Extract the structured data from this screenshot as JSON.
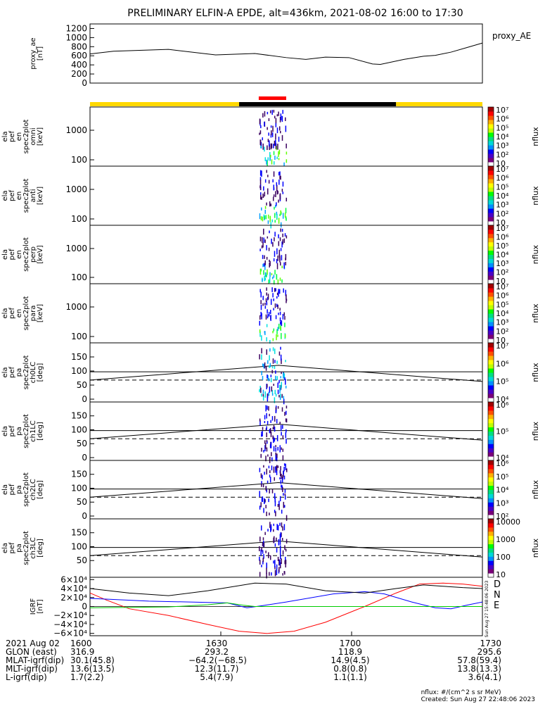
{
  "title": "PRELIMINARY ELFIN-A EPDE, alt=436km, 2021-08-02 16:00 to 17:30",
  "chart_data": {
    "type": "line",
    "time_range": [
      "16:00",
      "17:30"
    ],
    "panels": [
      {
        "id": "proxy_ae",
        "ylabel": [
          "proxy_ae",
          "[nT]"
        ],
        "legend": "proxy_AE",
        "yticks": [
          "0",
          "200",
          "400",
          "600",
          "800",
          "1000",
          "1200"
        ],
        "ylim": [
          0,
          1300
        ],
        "series": [
          {
            "x": [
              0,
              0.06,
              0.2,
              0.32,
              0.42,
              0.5,
              0.55,
              0.6,
              0.66,
              0.72,
              0.74,
              0.8,
              0.85,
              0.88,
              0.92,
              0.96,
              1.0
            ],
            "y": [
              640,
              700,
              740,
              620,
              650,
              560,
              520,
              570,
              560,
              420,
              410,
              520,
              590,
              610,
              680,
              780,
              880
            ]
          }
        ]
      },
      {
        "id": "omni",
        "ylabel": [
          "ela",
          "pef",
          "en",
          "spec2plot",
          "omni",
          "[keV]"
        ],
        "yticks": [
          "100",
          "1000"
        ],
        "spec": true,
        "cbar_ticks": [
          "10",
          "10²",
          "10³",
          "10⁴",
          "10⁵",
          "10⁶",
          "10⁷"
        ],
        "cbar_label": "nflux"
      },
      {
        "id": "anti",
        "ylabel": [
          "ela",
          "pef",
          "en",
          "spec2plot",
          "anti",
          "[keV]"
        ],
        "yticks": [
          "100",
          "1000"
        ],
        "spec": true,
        "cbar_ticks": [
          "10",
          "10²",
          "10³",
          "10⁴",
          "10⁵",
          "10⁶",
          "10⁷"
        ],
        "cbar_label": "nflux"
      },
      {
        "id": "perp",
        "ylabel": [
          "ela",
          "pef",
          "en",
          "spec2plot",
          "perp",
          "[keV]"
        ],
        "yticks": [
          "100",
          "1000"
        ],
        "spec": true,
        "cbar_ticks": [
          "10",
          "10²",
          "10³",
          "10⁴",
          "10⁵",
          "10⁶",
          "10⁷"
        ],
        "cbar_label": "nflux"
      },
      {
        "id": "para",
        "ylabel": [
          "ela",
          "pef",
          "en",
          "spec2plot",
          "para",
          "[keV]"
        ],
        "yticks": [
          "100",
          "1000"
        ],
        "spec": true,
        "cbar_ticks": [
          "10",
          "10²",
          "10³",
          "10⁴",
          "10⁵",
          "10⁶",
          "10⁷"
        ],
        "cbar_label": "nflux"
      },
      {
        "id": "ch0LC",
        "ylabel": [
          "ela",
          "pef",
          "pa",
          "spec2plot",
          "ch0LC",
          "[deg]"
        ],
        "yticks": [
          "0",
          "50",
          "100",
          "150"
        ],
        "pa": true,
        "cbar_ticks": [
          "10⁴",
          "10⁵",
          "10⁶",
          "10⁷"
        ],
        "cbar_label": "nflux"
      },
      {
        "id": "ch1LC",
        "ylabel": [
          "ela",
          "pef",
          "pa",
          "spec2plot",
          "ch1LC",
          "[deg]"
        ],
        "yticks": [
          "0",
          "50",
          "100",
          "150"
        ],
        "pa": true,
        "cbar_ticks": [
          "10⁴",
          "10⁵",
          "10⁶"
        ],
        "cbar_label": "nflux"
      },
      {
        "id": "ch2LC",
        "ylabel": [
          "ela",
          "pef",
          "pa",
          "spec2plot",
          "ch2LC",
          "[deg]"
        ],
        "yticks": [
          "0",
          "50",
          "100",
          "150"
        ],
        "pa": true,
        "cbar_ticks": [
          "10²",
          "10³",
          "10⁴",
          "10⁵",
          "10⁶"
        ],
        "cbar_label": "nflux"
      },
      {
        "id": "ch3LC",
        "ylabel": [
          "ela",
          "pef",
          "pa",
          "spec2plot",
          "ch3LC",
          "[deg]"
        ],
        "yticks": [
          "50",
          "100",
          "150"
        ],
        "pa": true,
        "cbar_ticks": [
          "10",
          "100",
          "1000",
          "10000"
        ],
        "cbar_label": "nflux"
      },
      {
        "id": "igrf",
        "ylabel": [
          "IGRF",
          "[nT]"
        ],
        "yticks": [
          "−6×10⁴",
          "−4×10⁴",
          "−2×10⁴",
          "0",
          "2×10⁴",
          "4×10⁴",
          "6×10⁴"
        ],
        "ylim": [
          -65000,
          65000
        ],
        "series": [
          {
            "name": "D",
            "color": "#ff0000",
            "x": [
              0,
              0.04,
              0.1,
              0.2,
              0.3,
              0.38,
              0.45,
              0.52,
              0.6,
              0.7,
              0.78,
              0.84,
              0.9,
              0.95,
              1.0
            ],
            "y": [
              30000,
              15000,
              -5000,
              -20000,
              -40000,
              -55000,
              -60000,
              -55000,
              -35000,
              0,
              30000,
              50000,
              52000,
              50000,
              45000
            ]
          },
          {
            "name": "N",
            "color": "#0000ff",
            "x": [
              0,
              0.05,
              0.15,
              0.35,
              0.4,
              0.44,
              0.5,
              0.62,
              0.7,
              0.75,
              0.82,
              0.88,
              0.92,
              0.96,
              1.0
            ],
            "y": [
              18000,
              16000,
              12000,
              8000,
              -3000,
              2000,
              10000,
              28000,
              33000,
              28000,
              10000,
              -3000,
              -5000,
              3000,
              10000
            ]
          },
          {
            "name": "E",
            "color": "#00cc00",
            "x": [
              0,
              0.1,
              0.2,
              0.3,
              0.35,
              0.39,
              0.42,
              0.5,
              0.7,
              0.9,
              1.0
            ],
            "y": [
              -3000,
              -2000,
              -1000,
              4000,
              8000,
              3000,
              0,
              0,
              0,
              0,
              0
            ]
          },
          {
            "name": "",
            "color": "#000000",
            "x": [
              0,
              0.1,
              0.2,
              0.3,
              0.42,
              0.5,
              0.6,
              0.7,
              0.78,
              0.85,
              0.9,
              0.95,
              1.0
            ],
            "y": [
              40000,
              30000,
              24000,
              35000,
              52000,
              50000,
              35000,
              30000,
              40000,
              48000,
              45000,
              42000,
              40000
            ]
          }
        ]
      }
    ]
  },
  "status_bar": {
    "colors": [
      "#ffd800",
      "#000000",
      "#ffd800"
    ],
    "breaks": [
      0.38,
      0.78
    ],
    "marker": {
      "range": [
        0.43,
        0.5
      ],
      "color": "#ff0000"
    }
  },
  "igrf_legend": [
    "D",
    "N",
    "E"
  ],
  "side_note": "Sun Aug 27 15:48:06 2023",
  "footer": {
    "rows": [
      {
        "label": "2021 Aug 02",
        "v": [
          "1600",
          "1630",
          "1700",
          "1730"
        ]
      },
      {
        "label": "GLON (east)",
        "v": [
          "316.9",
          "293.2",
          "118.9",
          "295.6"
        ]
      },
      {
        "label": "MLAT-igrf(dip)",
        "v": [
          "30.1(45.8)",
          "−64.2(−68.5)",
          "14.9(4.5)",
          "57.8(59.4)"
        ]
      },
      {
        "label": "MLT-igrf(dip)",
        "v": [
          "13.6(13.5)",
          "12.3(11.7)",
          "0.8(0.8)",
          "13.8(13.3)"
        ]
      },
      {
        "label": "L-igrf(dip)",
        "v": [
          "1.7(2.2)",
          "5.4(7.9)",
          "1.1(1.1)",
          "3.6(4.1)"
        ]
      }
    ],
    "note1": "nflux: #/(cm^2 s sr MeV)",
    "note2": "Created: Sun Aug 27 22:48:06 2023"
  }
}
